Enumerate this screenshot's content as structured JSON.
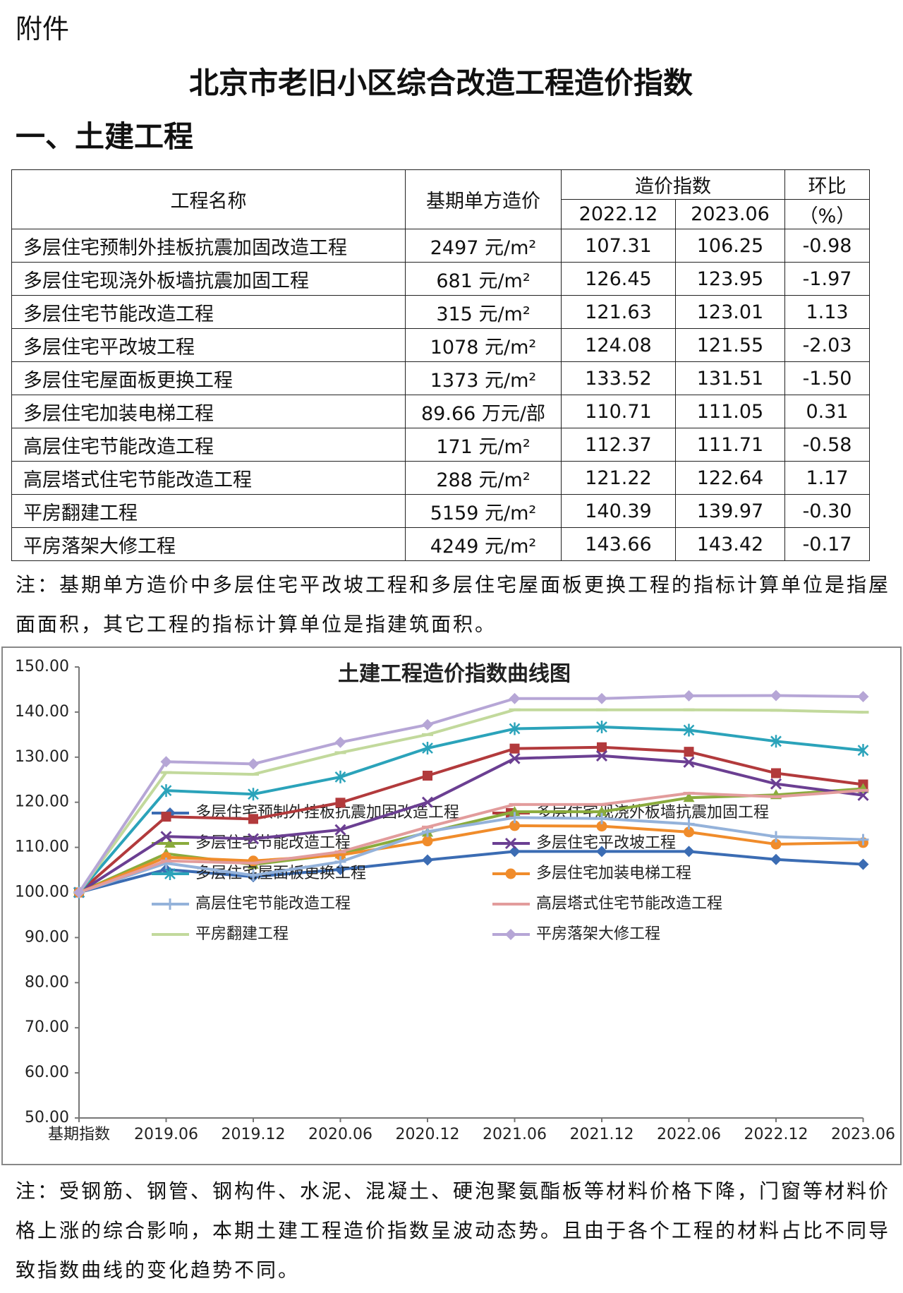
{
  "header": {
    "attachment": "附件",
    "title": "北京市老旧小区综合改造工程造价指数",
    "section": "一、土建工程"
  },
  "table": {
    "headers": [
      "工程名称",
      "基期单方造价",
      "造价指数",
      "环比",
      "（%）"
    ],
    "subheaders": [
      "2022.12",
      "2023.06"
    ],
    "rows": [
      [
        "多层住宅预制外挂板抗震加固改造工程",
        "2497 元/m²",
        "107.31",
        "106.25",
        "-0.98"
      ],
      [
        "多层住宅现浇外板墙抗震加固工程",
        "681 元/m²",
        "126.45",
        "123.95",
        "-1.97"
      ],
      [
        "多层住宅节能改造工程",
        "315 元/m²",
        "121.63",
        "123.01",
        "1.13"
      ],
      [
        "多层住宅平改坡工程",
        "1078 元/m²",
        "124.08",
        "121.55",
        "-2.03"
      ],
      [
        "多层住宅屋面板更换工程",
        "1373 元/m²",
        "133.52",
        "131.51",
        "-1.50"
      ],
      [
        "多层住宅加装电梯工程",
        "89.66 万元/部",
        "110.71",
        "111.05",
        "0.31"
      ],
      [
        "高层住宅节能改造工程",
        "171 元/m²",
        "112.37",
        "111.71",
        "-0.58"
      ],
      [
        "高层塔式住宅节能改造工程",
        "288 元/m²",
        "121.22",
        "122.64",
        "1.17"
      ],
      [
        "平房翻建工程",
        "5159 元/m²",
        "140.39",
        "139.97",
        "-0.30"
      ],
      [
        "平房落架大修工程",
        "4249 元/m²",
        "143.66",
        "143.42",
        "-0.17"
      ]
    ]
  },
  "note1": "注：基期单方造价中多层住宅平改坡工程和多层住宅屋面板更换工程的指标计算单位是指屋面面积，其它工程的指标计算单位是指建筑面积。",
  "chart_data": {
    "type": "line",
    "title": "土建工程造价指数曲线图",
    "categories": [
      "基期指数",
      "2019.06",
      "2019.12",
      "2020.06",
      "2020.12",
      "2021.06",
      "2021.12",
      "2022.06",
      "2022.12",
      "2023.06"
    ],
    "ylim": [
      50,
      150
    ],
    "yticks": [
      {
        "value": 50,
        "label": "50.00"
      },
      {
        "value": 60,
        "label": "60.00"
      },
      {
        "value": 70,
        "label": "70.00"
      },
      {
        "value": 80,
        "label": "80.00"
      },
      {
        "value": 90,
        "label": "90.00"
      },
      {
        "value": 100,
        "label": "100.00"
      },
      {
        "value": 110,
        "label": "110.00"
      },
      {
        "value": 120,
        "label": "120.00"
      },
      {
        "value": 130,
        "label": "130.00"
      },
      {
        "value": 140,
        "label": "140.00"
      },
      {
        "value": 150,
        "label": "150.00"
      }
    ],
    "series": [
      {
        "name": "多层住宅预制外挂板抗震加固改造工程",
        "color": "#3b6cb3",
        "marker": "diamond",
        "values": [
          100,
          105.1,
          103.5,
          105.1,
          107.2,
          109.1,
          109.1,
          109.1,
          107.31,
          106.25
        ]
      },
      {
        "name": "多层住宅现浇外板墙抗震加固工程",
        "color": "#b23a3c",
        "marker": "square",
        "values": [
          100,
          116.8,
          116.3,
          119.9,
          125.9,
          131.9,
          132.2,
          131.2,
          126.45,
          123.95
        ]
      },
      {
        "name": "多层住宅节能改造工程",
        "color": "#8aab3c",
        "marker": "triangle",
        "values": [
          100,
          108.6,
          106.2,
          108.5,
          113.3,
          117.9,
          117.9,
          121,
          121.63,
          123.01
        ]
      },
      {
        "name": "多层住宅平改坡工程",
        "color": "#6b3f92",
        "marker": "x",
        "values": [
          100,
          112.4,
          111.9,
          113.9,
          120,
          129.7,
          130.3,
          128.9,
          124.08,
          121.55
        ]
      },
      {
        "name": "多层住宅屋面板更换工程",
        "color": "#2ba3ba",
        "marker": "star",
        "values": [
          100,
          122.6,
          121.8,
          125.6,
          132,
          136.3,
          136.7,
          136,
          133.52,
          131.51
        ]
      },
      {
        "name": "多层住宅加装电梯工程",
        "color": "#f08c2b",
        "marker": "circle",
        "values": [
          100,
          107.8,
          107,
          108.3,
          111.4,
          114.8,
          114.7,
          113.4,
          110.71,
          111.05
        ]
      },
      {
        "name": "高层住宅节能改造工程",
        "color": "#94b2da",
        "marker": "plus",
        "values": [
          100,
          106.5,
          103.8,
          106.8,
          113.5,
          116.6,
          116.4,
          115.2,
          112.37,
          111.71
        ]
      },
      {
        "name": "高层塔式住宅节能改造工程",
        "color": "#e29c9c",
        "marker": "dash",
        "values": [
          100,
          107,
          106.5,
          109,
          114.5,
          119.5,
          119.5,
          122,
          121.22,
          122.64
        ]
      },
      {
        "name": "平房翻建工程",
        "color": "#c2d99c",
        "marker": "dash",
        "values": [
          100,
          126.6,
          126.2,
          131,
          135,
          140.5,
          140.5,
          140.5,
          140.39,
          139.97
        ]
      },
      {
        "name": "平房落架大修工程",
        "color": "#b6a6d6",
        "marker": "diamond",
        "values": [
          100,
          129,
          128.5,
          133.3,
          137.2,
          143,
          143,
          143.6,
          143.66,
          143.42
        ]
      }
    ]
  },
  "note2": "注：受钢筋、钢管、钢构件、水泥、混凝土、硬泡聚氨酯板等材料价格下降，门窗等材料价格上涨的综合影响，本期土建工程造价指数呈波动态势。且由于各个工程的材料占比不同导致指数曲线的变化趋势不同。"
}
